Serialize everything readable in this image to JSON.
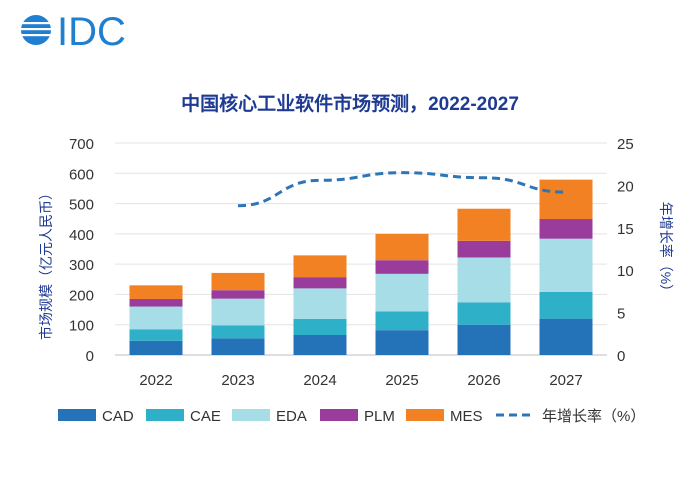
{
  "logo": {
    "text": "IDC"
  },
  "chart_data": {
    "type": "bar",
    "stacked": true,
    "title": "中国核心工业软件市场预测，2022-2027",
    "categories": [
      "2022",
      "2023",
      "2024",
      "2025",
      "2026",
      "2027"
    ],
    "ylabel": "市场规模（亿元人民币）",
    "y2label": "年增长率（%）",
    "ylim": [
      0,
      700
    ],
    "y2lim": [
      0,
      25
    ],
    "yticks": [
      "0",
      "100",
      "200",
      "300",
      "400",
      "500",
      "600",
      "700"
    ],
    "y2ticks": [
      "0",
      "5",
      "10",
      "15",
      "20",
      "25"
    ],
    "series": [
      {
        "name": "CAD",
        "color": "#2472b8",
        "values": [
          47,
          55,
          66,
          82,
          100,
          120
        ]
      },
      {
        "name": "CAE",
        "color": "#2eb0c8",
        "values": [
          38,
          43,
          53,
          62,
          74,
          88
        ]
      },
      {
        "name": "EDA",
        "color": "#a6dde6",
        "values": [
          75,
          88,
          101,
          124,
          148,
          176
        ]
      },
      {
        "name": "PLM",
        "color": "#993c9b",
        "values": [
          25,
          28,
          37,
          45,
          55,
          65
        ]
      },
      {
        "name": "MES",
        "color": "#f28123",
        "values": [
          45,
          57,
          72,
          87,
          106,
          130
        ]
      }
    ],
    "line": {
      "name": "年增长率（%）",
      "color": "#2e75b6",
      "x": [
        "2023",
        "2024",
        "2025",
        "2026",
        "2027"
      ],
      "values": [
        17.6,
        20.6,
        21.5,
        20.9,
        19.2
      ]
    },
    "legend_position": "bottom"
  }
}
